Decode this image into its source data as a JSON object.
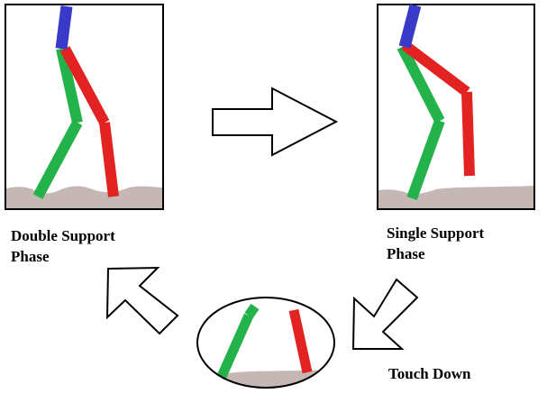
{
  "diagram": {
    "phases": [
      {
        "id": "double-support",
        "line1": "Double Support",
        "line2": "Phase"
      },
      {
        "id": "single-support",
        "line1": "Single Support",
        "line2": "Phase"
      },
      {
        "id": "touch-down",
        "line1": "Touch Down"
      }
    ],
    "colors": {
      "torso": "#3a3ac8",
      "left_leg": "#23b34a",
      "right_leg": "#e32222",
      "ground": "#c5b8b4",
      "frame": "#000000",
      "arrow_fill": "#ffffff",
      "arrow_stroke": "#000000"
    },
    "transitions": [
      {
        "from": "double-support",
        "to": "single-support",
        "direction": "right"
      },
      {
        "from": "single-support",
        "to": "touch-down",
        "direction": "down-left"
      },
      {
        "from": "touch-down",
        "to": "double-support",
        "direction": "up-left"
      }
    ]
  }
}
